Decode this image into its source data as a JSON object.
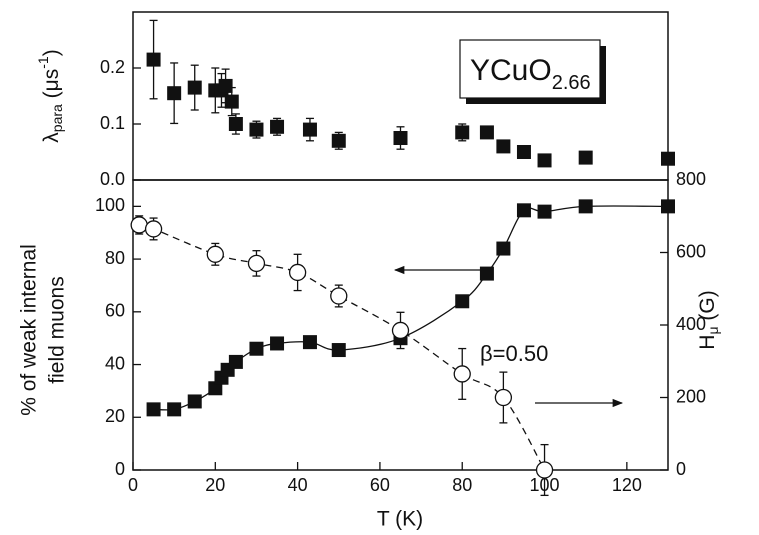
{
  "chart_data": [
    {
      "type": "scatter",
      "y_label": [
        "λ",
        "para",
        " (μs",
        "-1",
        ")"
      ],
      "annotation": [
        "YCuO",
        "2.66"
      ],
      "x": [
        5,
        10,
        15,
        20,
        21.5,
        22.5,
        24,
        25,
        30,
        35,
        43,
        50,
        65,
        80,
        86,
        90,
        95,
        100,
        110,
        130
      ],
      "values": [
        0.215,
        0.155,
        0.165,
        0.16,
        0.16,
        0.168,
        0.14,
        0.1,
        0.09,
        0.095,
        0.09,
        0.07,
        0.075,
        0.085,
        0.085,
        0.06,
        0.05,
        0.035,
        0.04,
        0.038
      ],
      "errors": [
        0.07,
        0.054,
        0.04,
        0.04,
        0.03,
        0.03,
        0.025,
        0.018,
        0.015,
        0.015,
        0.02,
        0.015,
        0.02,
        0.015,
        0.01,
        0.01,
        0.008,
        0.008,
        0.006,
        0.006
      ],
      "color": "#111111",
      "xlim": [
        0,
        130
      ],
      "ylim": [
        0,
        0.3
      ],
      "yticks": [
        {
          "value": 0,
          "label": "0.0"
        },
        0.1,
        0.2
      ]
    },
    {
      "type": "scatter",
      "x_label": "T (K)",
      "y_label": [
        "% of weak internal",
        "field muons"
      ],
      "y2_label": [
        "H",
        "μ",
        " (G)"
      ],
      "annotation": "β=0.50",
      "xlim": [
        0,
        130
      ],
      "xticks": [
        0,
        20,
        40,
        60,
        80,
        100,
        120
      ],
      "ylim": [
        0,
        110
      ],
      "yticks": [
        0,
        20,
        40,
        60,
        80,
        100
      ],
      "y2lim": [
        0,
        800
      ],
      "y2ticks": [
        0,
        200,
        400,
        600,
        800
      ],
      "series": [
        {
          "marker": "square",
          "line": "solid",
          "color": "#111111",
          "x": [
            5,
            10,
            15,
            20,
            21.5,
            23,
            25,
            30,
            35,
            43,
            50,
            65,
            80,
            86,
            90,
            95,
            100,
            110,
            130
          ],
          "values": [
            23,
            23,
            26,
            31,
            35,
            38,
            41,
            46,
            48,
            48.5,
            45.5,
            50,
            64,
            74.5,
            84,
            98.5,
            98,
            100,
            100
          ]
        },
        {
          "marker": "circle",
          "line": "dashed",
          "axis": "y2",
          "color": "#111111",
          "x": [
            1.5,
            5,
            20,
            30,
            40,
            50,
            65,
            80,
            90,
            100
          ],
          "values": [
            676,
            665,
            595,
            570,
            545,
            480,
            385,
            265,
            200,
            0
          ],
          "errors": [
            25,
            30,
            30,
            35,
            50,
            30,
            50,
            70,
            70,
            70
          ]
        }
      ]
    }
  ]
}
